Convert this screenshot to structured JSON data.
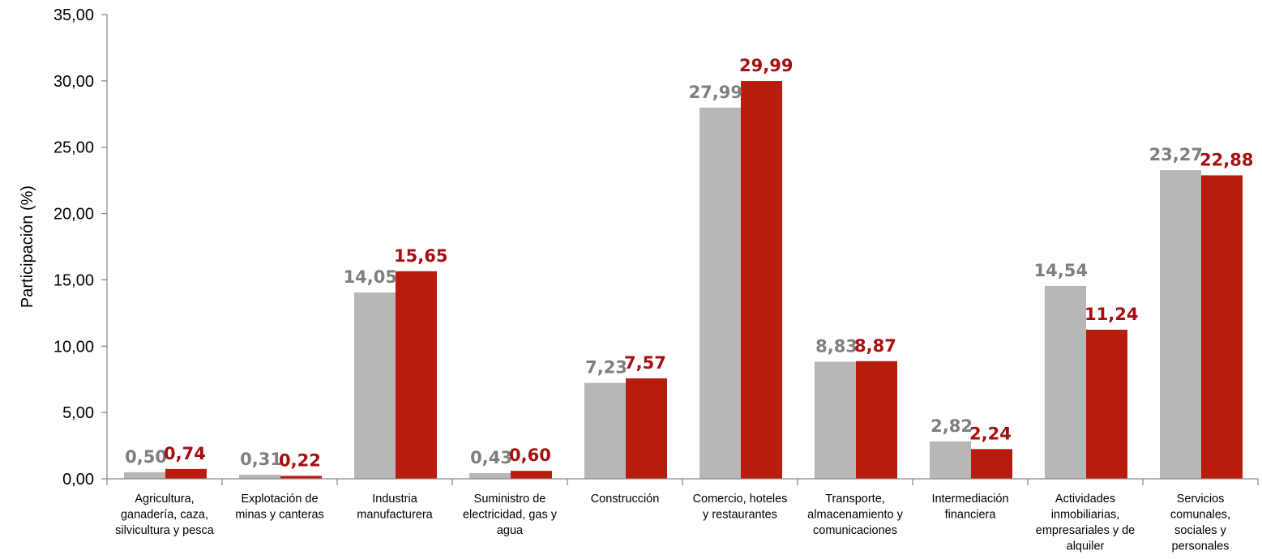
{
  "chart_data": {
    "type": "bar",
    "title": "",
    "xlabel": "",
    "ylabel": "Participación (%)",
    "ylim": [
      0,
      35
    ],
    "yticks": [
      "0,00",
      "5,00",
      "10,00",
      "15,00",
      "20,00",
      "25,00",
      "30,00",
      "35,00"
    ],
    "ytick_values": [
      0,
      5,
      10,
      15,
      20,
      25,
      30,
      35
    ],
    "grid": false,
    "legend": "none",
    "categories": [
      [
        "Agricultura,",
        "ganadería, caza,",
        "silvicultura y pesca"
      ],
      [
        "Explotación de",
        "minas y canteras"
      ],
      [
        "Industria",
        "manufacturera"
      ],
      [
        "Suministro de",
        "electricidad, gas y",
        "agua"
      ],
      [
        "Construcción"
      ],
      [
        "Comercio, hoteles",
        "y restaurantes"
      ],
      [
        "Transporte,",
        "almacenamiento y",
        "comunicaciones"
      ],
      [
        "Intermediación",
        "financiera"
      ],
      [
        "Actividades",
        "inmobiliarias,",
        "empresariales y de",
        "alquiler"
      ],
      [
        "Servicios",
        "comunales,",
        "sociales y",
        "personales"
      ]
    ],
    "series": [
      {
        "color": "#b7b7b7",
        "label_color": "#7f7f7f",
        "values": [
          0.5,
          0.31,
          14.05,
          0.43,
          7.23,
          27.99,
          8.83,
          2.82,
          14.54,
          23.27
        ],
        "labels": [
          "0,50",
          "0,31",
          "14,05",
          "0,43",
          "7,23",
          "27,99",
          "8,83",
          "2,82",
          "14,54",
          "23,27"
        ]
      },
      {
        "color": "#b71c0c",
        "label_color": "#a50f0f",
        "values": [
          0.74,
          0.22,
          15.65,
          0.6,
          7.57,
          29.99,
          8.87,
          2.24,
          11.24,
          22.88
        ],
        "labels": [
          "0,74",
          "0,22",
          "15,65",
          "0,60",
          "7,57",
          "29,99",
          "8,87",
          "2,24",
          "11,24",
          "22,88"
        ]
      }
    ]
  }
}
